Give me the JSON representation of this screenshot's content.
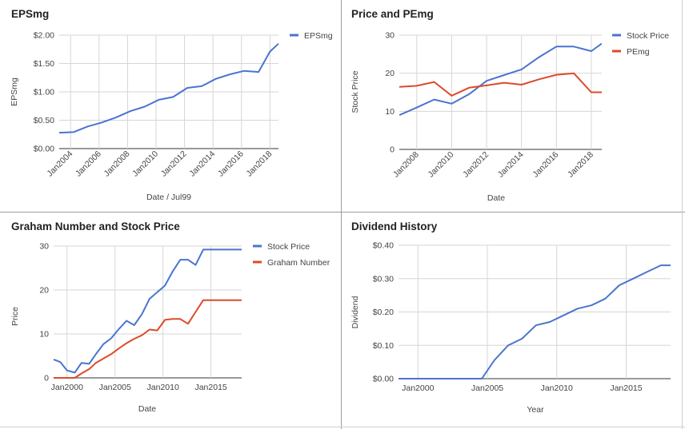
{
  "colors": {
    "blue": "#4a74cf",
    "red": "#dc4b2a",
    "grid": "#d6d6d6",
    "axis": "#333333",
    "text": "#444444",
    "title": "#222222"
  },
  "chart_data": [
    {
      "id": "epsmg",
      "type": "line",
      "title": "EPSmg",
      "xlabel": "Date / Jul99",
      "ylabel": "EPSmg",
      "x_axis": "date",
      "xlim": [
        2003.2,
        2018.6
      ],
      "ylim": [
        0,
        2
      ],
      "x_ticks": [
        2004,
        2006,
        2008,
        2010,
        2012,
        2014,
        2016,
        2018
      ],
      "x_tick_labels": [
        "Jan2004",
        "Jan2006",
        "Jan2008",
        "Jan2010",
        "Jan2012",
        "Jan2014",
        "Jan2016",
        "Jan2018"
      ],
      "x_tick_rotate": true,
      "y_ticks": [
        0,
        0.5,
        1,
        1.5,
        2
      ],
      "y_tick_labels": [
        "$0.00",
        "$0.50",
        "$1.00",
        "$1.50",
        "$2.00"
      ],
      "grid": true,
      "legend_position": "top-right",
      "series": [
        {
          "name": "EPSmg",
          "color": "blue",
          "x": [
            2003.2,
            2004.2,
            2005.2,
            2006.2,
            2007.2,
            2008.2,
            2009.2,
            2010.2,
            2011.2,
            2012.2,
            2013.2,
            2014.2,
            2015.2,
            2016.2,
            2017.2,
            2018.0,
            2018.6
          ],
          "y": [
            0.28,
            0.29,
            0.39,
            0.46,
            0.55,
            0.66,
            0.74,
            0.86,
            0.91,
            1.07,
            1.1,
            1.23,
            1.31,
            1.37,
            1.35,
            1.71,
            1.85
          ]
        }
      ]
    },
    {
      "id": "price-pemg",
      "type": "line",
      "title": "Price and PEmg",
      "xlabel": "Date",
      "ylabel": "Stock Price",
      "x_axis": "date",
      "xlim": [
        2007,
        2018.6
      ],
      "ylim": [
        0,
        30
      ],
      "x_ticks": [
        2008,
        2010,
        2012,
        2014,
        2016,
        2018
      ],
      "x_tick_labels": [
        "Jan2008",
        "Jan2010",
        "Jan2012",
        "Jan2014",
        "Jan2016",
        "Jan2018"
      ],
      "x_tick_rotate": true,
      "y_ticks": [
        0,
        10,
        20,
        30
      ],
      "y_tick_labels": [
        "0",
        "10",
        "20",
        "30"
      ],
      "grid": true,
      "legend_position": "top-right",
      "series": [
        {
          "name": "Stock Price",
          "color": "blue",
          "x": [
            2007.0,
            2008.0,
            2009.0,
            2010.0,
            2011.0,
            2012.0,
            2013.0,
            2014.0,
            2015.0,
            2016.0,
            2017.0,
            2018.0,
            2018.6
          ],
          "y": [
            9.0,
            11.0,
            13.1,
            12.0,
            14.5,
            18.0,
            19.5,
            21.0,
            24.2,
            27.0,
            27.0,
            25.8,
            27.8
          ]
        },
        {
          "name": "PEmg",
          "color": "red",
          "x": [
            2007.0,
            2008.0,
            2009.0,
            2010.0,
            2011.0,
            2012.0,
            2013.0,
            2014.0,
            2015.0,
            2016.0,
            2017.0,
            2018.0,
            2018.6
          ],
          "y": [
            16.4,
            16.7,
            17.7,
            14.1,
            16.2,
            16.8,
            17.5,
            17.0,
            18.4,
            19.6,
            20.0,
            15.0,
            15.0
          ]
        }
      ]
    },
    {
      "id": "graham",
      "type": "line",
      "title": "Graham Number and Stock Price",
      "xlabel": "Date",
      "ylabel": "Price",
      "x_axis": "date",
      "xlim": [
        1998.6,
        2018.2
      ],
      "ylim": [
        0,
        30
      ],
      "x_ticks": [
        2000,
        2005,
        2010,
        2015
      ],
      "x_tick_labels": [
        "Jan2000",
        "Jan2005",
        "Jan2010",
        "Jan2015"
      ],
      "x_tick_rotate": false,
      "y_ticks": [
        0,
        10,
        20,
        30
      ],
      "y_tick_labels": [
        "0",
        "10",
        "20",
        "30"
      ],
      "grid": true,
      "legend_position": "top-right",
      "series": [
        {
          "name": "Stock Price",
          "color": "blue",
          "x": [
            1998.6,
            1999.3,
            2000.0,
            2000.8,
            2001.5,
            2002.3,
            2003.0,
            2003.8,
            2004.6,
            2005.4,
            2006.2,
            2007.0,
            2007.8,
            2008.6,
            2009.4,
            2010.2,
            2011.0,
            2011.8,
            2012.6,
            2013.4,
            2014.2,
            2015.0,
            2015.8,
            2016.6,
            2017.4,
            2018.2
          ],
          "y": [
            4.2,
            3.6,
            1.7,
            1.2,
            3.4,
            3.2,
            5.4,
            7.7,
            9.0,
            11.1,
            13.0,
            12.0,
            14.5,
            18.0,
            19.5,
            21.0,
            24.2,
            26.9,
            26.9,
            25.7,
            29.2,
            29.2,
            29.2,
            29.2,
            29.2,
            29.2
          ]
        },
        {
          "name": "Graham Number",
          "color": "red",
          "x": [
            1998.6,
            1999.3,
            2000.0,
            2000.8,
            2001.5,
            2002.3,
            2003.0,
            2003.8,
            2004.6,
            2005.4,
            2006.2,
            2007.0,
            2007.8,
            2008.6,
            2009.4,
            2010.2,
            2011.0,
            2011.8,
            2012.6,
            2013.4,
            2014.2,
            2015.0,
            2015.8,
            2016.6,
            2017.4,
            2018.2
          ],
          "y": [
            0.0,
            0.0,
            0.0,
            0.0,
            1.0,
            2.0,
            3.4,
            4.4,
            5.4,
            6.7,
            7.9,
            8.9,
            9.7,
            11.0,
            10.8,
            13.2,
            13.4,
            13.4,
            12.3,
            15.0,
            17.7,
            17.7,
            17.7,
            17.7,
            17.7,
            17.7
          ]
        }
      ]
    },
    {
      "id": "dividend",
      "type": "line",
      "title": "Dividend History",
      "xlabel": "Year",
      "ylabel": "Dividend",
      "x_axis": "date",
      "xlim": [
        1998.6,
        2018.2
      ],
      "ylim": [
        0,
        0.4
      ],
      "x_ticks": [
        2000,
        2005,
        2010,
        2015
      ],
      "x_tick_labels": [
        "Jan2000",
        "Jan2005",
        "Jan2010",
        "Jan2015"
      ],
      "x_tick_rotate": false,
      "y_ticks": [
        0,
        0.1,
        0.2,
        0.3,
        0.4
      ],
      "y_tick_labels": [
        "$0.00",
        "$0.10",
        "$0.20",
        "$0.30",
        "$0.40"
      ],
      "grid": true,
      "legend_position": "none",
      "series": [
        {
          "name": "",
          "color": "blue",
          "x": [
            1998.6,
            2000.0,
            2001.0,
            2002.0,
            2003.0,
            2004.0,
            2004.6,
            2005.5,
            2006.5,
            2007.5,
            2008.5,
            2009.5,
            2010.5,
            2011.5,
            2012.5,
            2013.5,
            2014.5,
            2015.5,
            2016.5,
            2017.5,
            2018.2
          ],
          "y": [
            0.0,
            0.0,
            0.0,
            0.0,
            0.0,
            0.0,
            0.0,
            0.055,
            0.1,
            0.12,
            0.16,
            0.17,
            0.19,
            0.21,
            0.22,
            0.24,
            0.28,
            0.3,
            0.32,
            0.34,
            0.34
          ]
        }
      ]
    }
  ]
}
